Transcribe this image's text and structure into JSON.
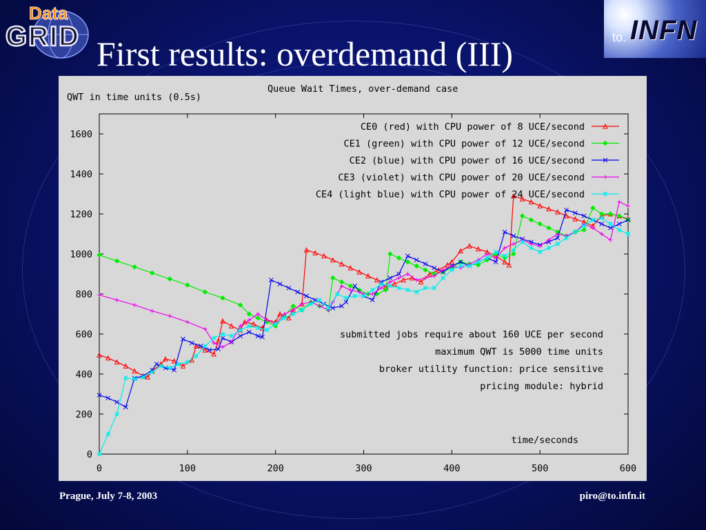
{
  "slide": {
    "title": "First results: overdemand (III)",
    "footer_left": "Prague, July 7-8, 2003",
    "footer_right": "piro@to.infn.it",
    "logo_left_text_top": "Data",
    "logo_left_text_bottom": "GRID",
    "logo_right_prefix": "to.",
    "logo_right_word": "INFN"
  },
  "chart_data": {
    "type": "line",
    "title": "Queue Wait Times, over-demand case",
    "ylabel": "QWT in time units (0.5s)",
    "xlabel": "time/seconds",
    "xlim": [
      0,
      600
    ],
    "ylim": [
      0,
      1700
    ],
    "x_ticks": [
      0,
      100,
      200,
      300,
      400,
      500,
      600
    ],
    "y_ticks": [
      0,
      200,
      400,
      600,
      800,
      1000,
      1200,
      1400,
      1600
    ],
    "legend_position": "top-right",
    "annotations": [
      "submitted jobs require about 160 UCE per second",
      "maximum QWT is 5000 time units",
      "broker utility function: price sensitive",
      "pricing module: hybrid"
    ],
    "series": [
      {
        "name": "CE0 (red) with CPU power of 8 UCE/second",
        "color": "#ff0000",
        "marker": "triangle",
        "points": [
          [
            0,
            495
          ],
          [
            10,
            480
          ],
          [
            20,
            460
          ],
          [
            30,
            440
          ],
          [
            40,
            415
          ],
          [
            50,
            390
          ],
          [
            55,
            385
          ],
          [
            60,
            415
          ],
          [
            70,
            450
          ],
          [
            75,
            475
          ],
          [
            85,
            465
          ],
          [
            95,
            440
          ],
          [
            105,
            470
          ],
          [
            110,
            540
          ],
          [
            120,
            520
          ],
          [
            130,
            500
          ],
          [
            135,
            565
          ],
          [
            140,
            665
          ],
          [
            150,
            640
          ],
          [
            160,
            620
          ],
          [
            165,
            660
          ],
          [
            175,
            650
          ],
          [
            185,
            630
          ],
          [
            190,
            670
          ],
          [
            200,
            660
          ],
          [
            205,
            700
          ],
          [
            215,
            680
          ],
          [
            220,
            720
          ],
          [
            230,
            750
          ],
          [
            235,
            1020
          ],
          [
            245,
            1005
          ],
          [
            255,
            990
          ],
          [
            265,
            970
          ],
          [
            275,
            950
          ],
          [
            285,
            930
          ],
          [
            295,
            910
          ],
          [
            305,
            890
          ],
          [
            315,
            870
          ],
          [
            325,
            835
          ],
          [
            335,
            850
          ],
          [
            345,
            870
          ],
          [
            355,
            880
          ],
          [
            365,
            860
          ],
          [
            375,
            900
          ],
          [
            385,
            920
          ],
          [
            395,
            945
          ],
          [
            400,
            960
          ],
          [
            410,
            1015
          ],
          [
            420,
            1040
          ],
          [
            430,
            1025
          ],
          [
            440,
            1010
          ],
          [
            450,
            990
          ],
          [
            460,
            960
          ],
          [
            465,
            945
          ],
          [
            470,
            1290
          ],
          [
            480,
            1275
          ],
          [
            490,
            1260
          ],
          [
            500,
            1240
          ],
          [
            510,
            1225
          ],
          [
            520,
            1210
          ],
          [
            530,
            1190
          ],
          [
            540,
            1175
          ],
          [
            550,
            1160
          ],
          [
            560,
            1140
          ],
          [
            570,
            1190
          ],
          [
            580,
            1200
          ],
          [
            590,
            1190
          ],
          [
            600,
            1175
          ]
        ]
      },
      {
        "name": "CE1 (green) with CPU power of 12 UCE/second",
        "color": "#00ee00",
        "marker": "diamond",
        "points": [
          [
            0,
            995
          ],
          [
            20,
            965
          ],
          [
            40,
            935
          ],
          [
            60,
            905
          ],
          [
            80,
            875
          ],
          [
            100,
            845
          ],
          [
            120,
            810
          ],
          [
            140,
            780
          ],
          [
            160,
            745
          ],
          [
            170,
            700
          ],
          [
            180,
            680
          ],
          [
            190,
            660
          ],
          [
            200,
            640
          ],
          [
            210,
            690
          ],
          [
            220,
            740
          ],
          [
            230,
            720
          ],
          [
            240,
            760
          ],
          [
            250,
            740
          ],
          [
            260,
            720
          ],
          [
            265,
            880
          ],
          [
            275,
            860
          ],
          [
            285,
            840
          ],
          [
            295,
            820
          ],
          [
            305,
            800
          ],
          [
            315,
            800
          ],
          [
            325,
            820
          ],
          [
            330,
            1000
          ],
          [
            340,
            980
          ],
          [
            350,
            960
          ],
          [
            360,
            940
          ],
          [
            370,
            920
          ],
          [
            380,
            900
          ],
          [
            390,
            910
          ],
          [
            400,
            930
          ],
          [
            410,
            960
          ],
          [
            420,
            950
          ],
          [
            430,
            945
          ],
          [
            440,
            970
          ],
          [
            450,
            1000
          ],
          [
            460,
            980
          ],
          [
            470,
            1000
          ],
          [
            480,
            1190
          ],
          [
            490,
            1170
          ],
          [
            500,
            1150
          ],
          [
            510,
            1130
          ],
          [
            520,
            1110
          ],
          [
            530,
            1090
          ],
          [
            540,
            1110
          ],
          [
            550,
            1120
          ],
          [
            560,
            1230
          ],
          [
            570,
            1200
          ],
          [
            580,
            1200
          ],
          [
            590,
            1190
          ],
          [
            600,
            1170
          ]
        ]
      },
      {
        "name": "CE2 (blue) with CPU power of 16 UCE/second",
        "color": "#0000ee",
        "marker": "cross",
        "points": [
          [
            0,
            295
          ],
          [
            10,
            280
          ],
          [
            20,
            260
          ],
          [
            30,
            235
          ],
          [
            40,
            380
          ],
          [
            50,
            390
          ],
          [
            60,
            420
          ],
          [
            65,
            450
          ],
          [
            75,
            430
          ],
          [
            85,
            420
          ],
          [
            95,
            575
          ],
          [
            105,
            555
          ],
          [
            115,
            540
          ],
          [
            125,
            520
          ],
          [
            135,
            525
          ],
          [
            140,
            580
          ],
          [
            150,
            560
          ],
          [
            160,
            590
          ],
          [
            170,
            610
          ],
          [
            180,
            590
          ],
          [
            185,
            585
          ],
          [
            195,
            870
          ],
          [
            205,
            850
          ],
          [
            215,
            830
          ],
          [
            225,
            810
          ],
          [
            235,
            790
          ],
          [
            245,
            770
          ],
          [
            255,
            750
          ],
          [
            265,
            730
          ],
          [
            275,
            740
          ],
          [
            280,
            760
          ],
          [
            290,
            840
          ],
          [
            300,
            790
          ],
          [
            310,
            770
          ],
          [
            320,
            860
          ],
          [
            330,
            880
          ],
          [
            340,
            900
          ],
          [
            350,
            990
          ],
          [
            360,
            970
          ],
          [
            370,
            950
          ],
          [
            380,
            930
          ],
          [
            390,
            910
          ],
          [
            400,
            940
          ],
          [
            410,
            960
          ],
          [
            420,
            940
          ],
          [
            430,
            960
          ],
          [
            440,
            980
          ],
          [
            450,
            960
          ],
          [
            460,
            1110
          ],
          [
            470,
            1090
          ],
          [
            480,
            1075
          ],
          [
            490,
            1060
          ],
          [
            500,
            1045
          ],
          [
            510,
            1060
          ],
          [
            520,
            1080
          ],
          [
            530,
            1220
          ],
          [
            540,
            1205
          ],
          [
            550,
            1190
          ],
          [
            560,
            1170
          ],
          [
            570,
            1150
          ],
          [
            580,
            1130
          ],
          [
            590,
            1150
          ],
          [
            600,
            1170
          ]
        ]
      },
      {
        "name": "CE3 (violet) with CPU power of 20 UCE/second",
        "color": "#ee00ee",
        "marker": "plus",
        "points": [
          [
            0,
            795
          ],
          [
            20,
            770
          ],
          [
            40,
            745
          ],
          [
            60,
            715
          ],
          [
            80,
            690
          ],
          [
            100,
            660
          ],
          [
            120,
            625
          ],
          [
            130,
            555
          ],
          [
            140,
            535
          ],
          [
            150,
            560
          ],
          [
            160,
            640
          ],
          [
            170,
            670
          ],
          [
            180,
            700
          ],
          [
            190,
            670
          ],
          [
            200,
            650
          ],
          [
            210,
            700
          ],
          [
            220,
            720
          ],
          [
            230,
            750
          ],
          [
            240,
            760
          ],
          [
            250,
            740
          ],
          [
            260,
            720
          ],
          [
            265,
            760
          ],
          [
            275,
            840
          ],
          [
            285,
            820
          ],
          [
            295,
            810
          ],
          [
            300,
            800
          ],
          [
            310,
            800
          ],
          [
            320,
            830
          ],
          [
            330,
            860
          ],
          [
            340,
            880
          ],
          [
            350,
            900
          ],
          [
            360,
            870
          ],
          [
            370,
            880
          ],
          [
            380,
            890
          ],
          [
            390,
            920
          ],
          [
            400,
            940
          ],
          [
            410,
            930
          ],
          [
            420,
            950
          ],
          [
            430,
            970
          ],
          [
            440,
            1000
          ],
          [
            450,
            980
          ],
          [
            460,
            1030
          ],
          [
            470,
            1050
          ],
          [
            480,
            1070
          ],
          [
            490,
            1050
          ],
          [
            500,
            1040
          ],
          [
            510,
            1070
          ],
          [
            520,
            1100
          ],
          [
            530,
            1090
          ],
          [
            540,
            1110
          ],
          [
            550,
            1150
          ],
          [
            560,
            1130
          ],
          [
            570,
            1100
          ],
          [
            580,
            1070
          ],
          [
            590,
            1260
          ],
          [
            600,
            1240
          ]
        ]
      },
      {
        "name": "CE4 (light blue) with CPU power of 24 UCE/second",
        "color": "#00eeee",
        "marker": "star",
        "points": [
          [
            0,
            0
          ],
          [
            10,
            100
          ],
          [
            20,
            200
          ],
          [
            30,
            380
          ],
          [
            40,
            375
          ],
          [
            50,
            385
          ],
          [
            60,
            410
          ],
          [
            70,
            440
          ],
          [
            80,
            430
          ],
          [
            90,
            450
          ],
          [
            100,
            460
          ],
          [
            110,
            490
          ],
          [
            120,
            540
          ],
          [
            130,
            580
          ],
          [
            140,
            600
          ],
          [
            150,
            590
          ],
          [
            160,
            620
          ],
          [
            170,
            640
          ],
          [
            180,
            630
          ],
          [
            190,
            620
          ],
          [
            200,
            650
          ],
          [
            210,
            680
          ],
          [
            220,
            700
          ],
          [
            230,
            720
          ],
          [
            240,
            750
          ],
          [
            250,
            770
          ],
          [
            260,
            730
          ],
          [
            270,
            800
          ],
          [
            280,
            780
          ],
          [
            290,
            790
          ],
          [
            300,
            790
          ],
          [
            310,
            820
          ],
          [
            320,
            850
          ],
          [
            330,
            840
          ],
          [
            340,
            830
          ],
          [
            350,
            820
          ],
          [
            360,
            810
          ],
          [
            370,
            830
          ],
          [
            380,
            830
          ],
          [
            390,
            880
          ],
          [
            400,
            920
          ],
          [
            410,
            940
          ],
          [
            420,
            940
          ],
          [
            430,
            960
          ],
          [
            440,
            980
          ],
          [
            450,
            1010
          ],
          [
            460,
            990
          ],
          [
            470,
            1020
          ],
          [
            480,
            1060
          ],
          [
            490,
            1030
          ],
          [
            500,
            1010
          ],
          [
            510,
            1030
          ],
          [
            520,
            1050
          ],
          [
            530,
            1080
          ],
          [
            540,
            1110
          ],
          [
            550,
            1140
          ],
          [
            560,
            1170
          ],
          [
            570,
            1180
          ],
          [
            580,
            1150
          ],
          [
            590,
            1120
          ],
          [
            600,
            1100
          ]
        ]
      }
    ]
  }
}
